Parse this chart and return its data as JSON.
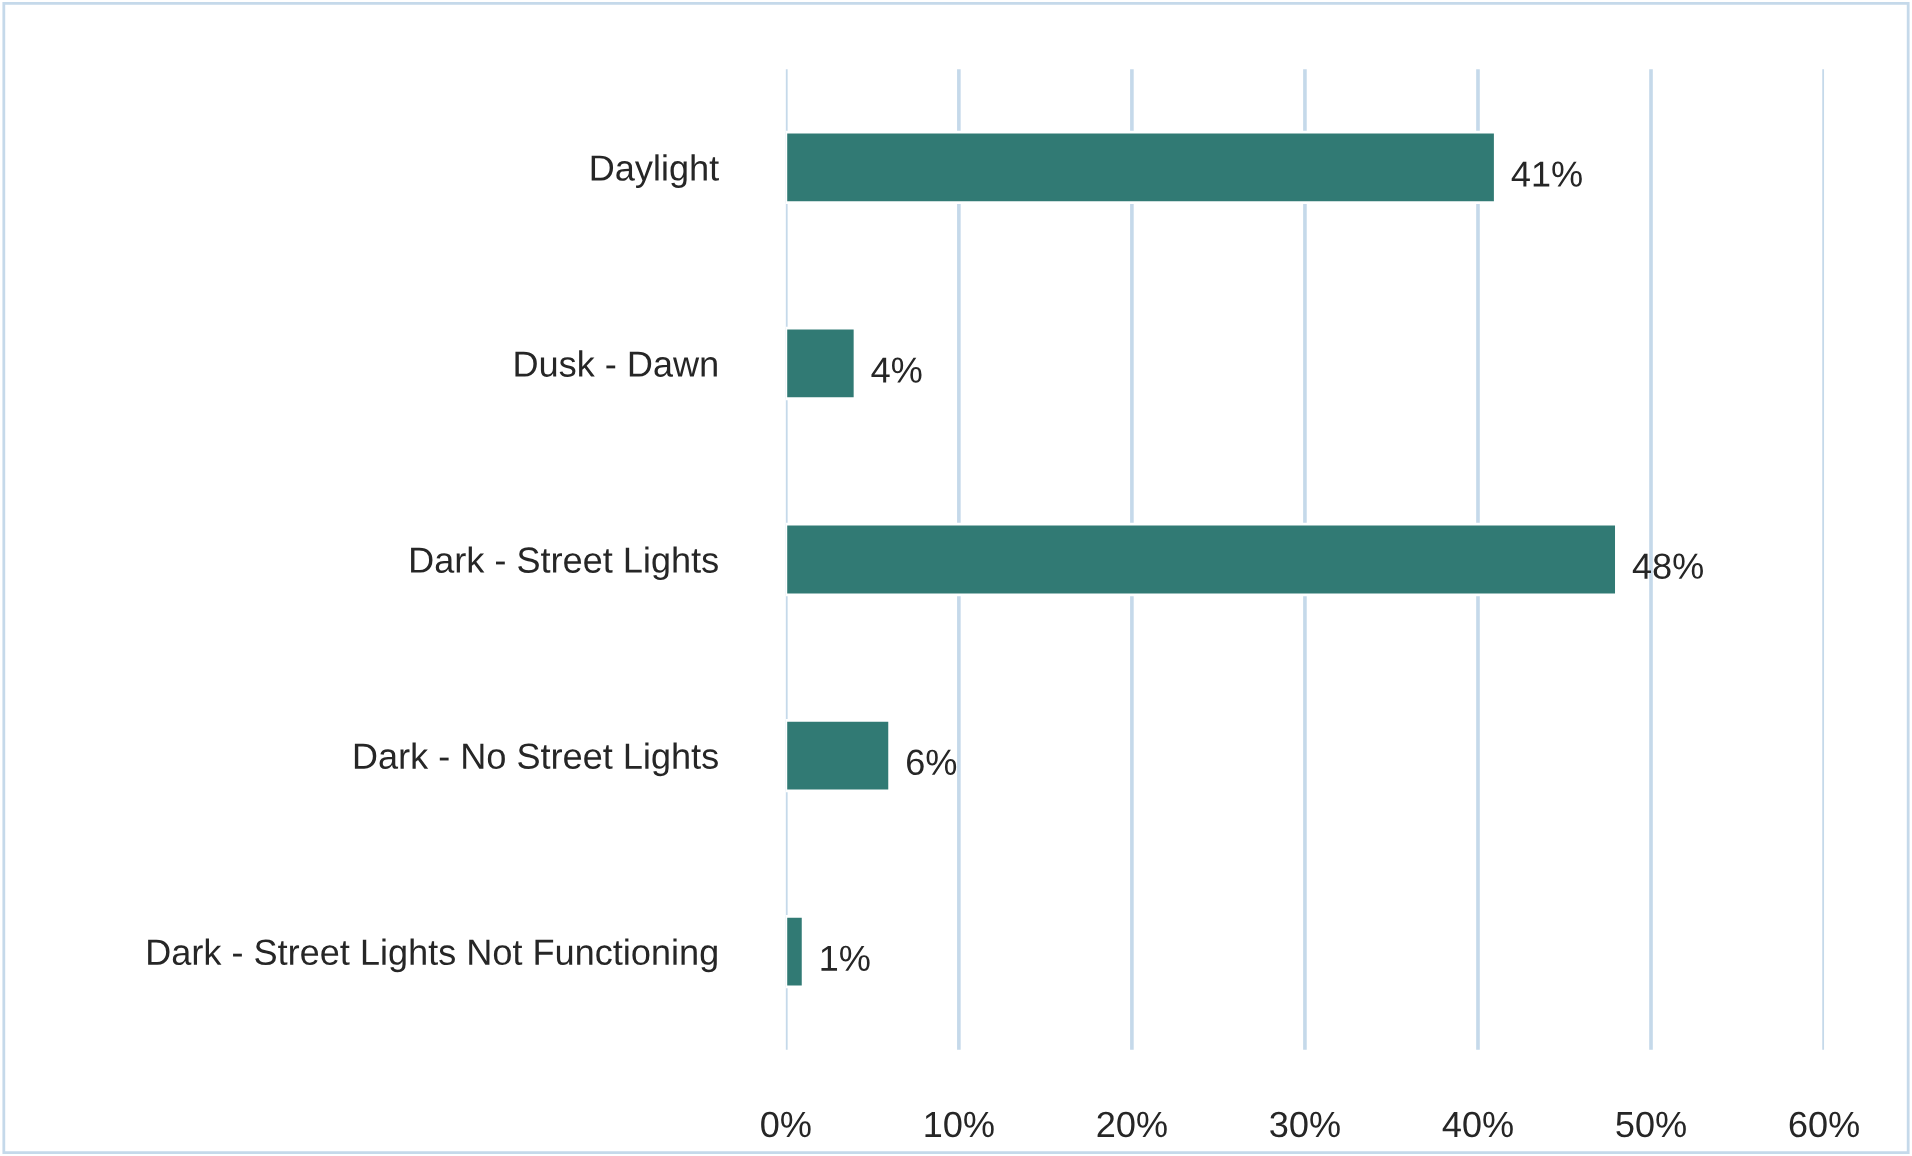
{
  "chart_data": {
    "type": "bar",
    "orientation": "horizontal",
    "categories": [
      "Daylight",
      "Dusk - Dawn",
      "Dark - Street Lights",
      "Dark - No Street Lights",
      "Dark - Street Lights Not Functioning"
    ],
    "values": [
      41,
      4,
      48,
      6,
      1
    ],
    "value_labels": [
      "41%",
      "4%",
      "48%",
      "6%",
      "1%"
    ],
    "color": "#317a74",
    "xlim": [
      0,
      60
    ],
    "xticks": [
      {
        "value": 0,
        "label": "0%"
      },
      {
        "value": 10,
        "label": "10%"
      },
      {
        "value": 20,
        "label": "20%"
      },
      {
        "value": 30,
        "label": "30%"
      },
      {
        "value": 40,
        "label": "40%"
      },
      {
        "value": 50,
        "label": "50%"
      },
      {
        "value": 60,
        "label": "60%"
      }
    ],
    "grid": "x",
    "legend": false
  }
}
